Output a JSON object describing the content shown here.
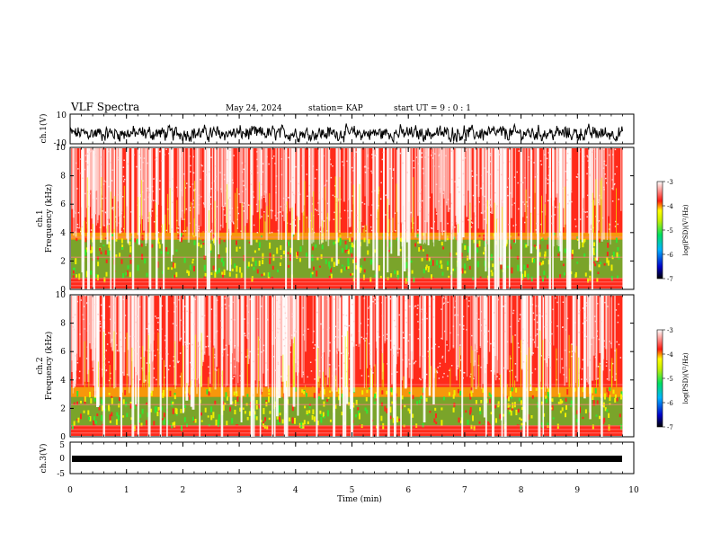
{
  "header": {
    "title": "VLF Spectra",
    "date": "May 24, 2024",
    "station": "station= KAP",
    "start_ut": "start  UT  =   9  :  0   :  1"
  },
  "chart_data": [
    {
      "type": "line",
      "name": "ch1-waveform",
      "ylabel": "ch.1(V)",
      "ylim": [
        -10,
        10
      ],
      "yticks": [
        "10",
        "-10"
      ],
      "xlim": [
        0,
        10
      ],
      "trace_color": "#000000",
      "note_values": "dense noise-like trace around -3 V, amplitude ~ +/-5 V"
    },
    {
      "type": "heatmap",
      "name": "ch1-spectrogram",
      "ylabel": "ch.1 Frequency (kHz)",
      "ylim": [
        0,
        10
      ],
      "yticks": [
        "0",
        "2",
        "4",
        "6",
        "8",
        "10"
      ],
      "xlim": [
        0,
        9.8
      ],
      "bands_khz": {
        "green_low": 0.8,
        "green_high": 3.5,
        "yellow_high": 4.0
      },
      "colorbar": {
        "label": "log(PSD)(V²/Hz)",
        "ticks": [
          "-3",
          "-4",
          "-5",
          "-6",
          "-7"
        ],
        "range": [
          -7,
          -3
        ]
      }
    },
    {
      "type": "heatmap",
      "name": "ch2-spectrogram",
      "ylabel": "ch.2 Frequency (kHz)",
      "ylim": [
        0,
        10
      ],
      "yticks": [
        "0",
        "2",
        "4",
        "6",
        "8",
        "10"
      ],
      "xlim": [
        0,
        9.8
      ],
      "bands_khz": {
        "green_low": 0.8,
        "green_high": 2.8,
        "yellow_high": 3.5
      },
      "colorbar": {
        "label": "log(PSD)(V²/Hz)",
        "ticks": [
          "-3",
          "-4",
          "-5",
          "-6",
          "-7"
        ],
        "range": [
          -7,
          -3
        ]
      }
    },
    {
      "type": "line",
      "name": "ch3-waveform",
      "ylabel": "ch.3(V)",
      "ylim": [
        -5,
        5
      ],
      "yticks": [
        "5",
        "0",
        "-5"
      ],
      "xlim": [
        0,
        10
      ],
      "trace_color": "#000000",
      "note_values": "thick band near -1 V"
    }
  ],
  "xaxis": {
    "label": "Time  (min)",
    "ticks": [
      "0",
      "1",
      "2",
      "3",
      "4",
      "5",
      "6",
      "7",
      "8",
      "9",
      "10"
    ]
  },
  "colors": {
    "red": "#ff2a1a",
    "yellow": "#f0f000",
    "green": "#33e633"
  }
}
